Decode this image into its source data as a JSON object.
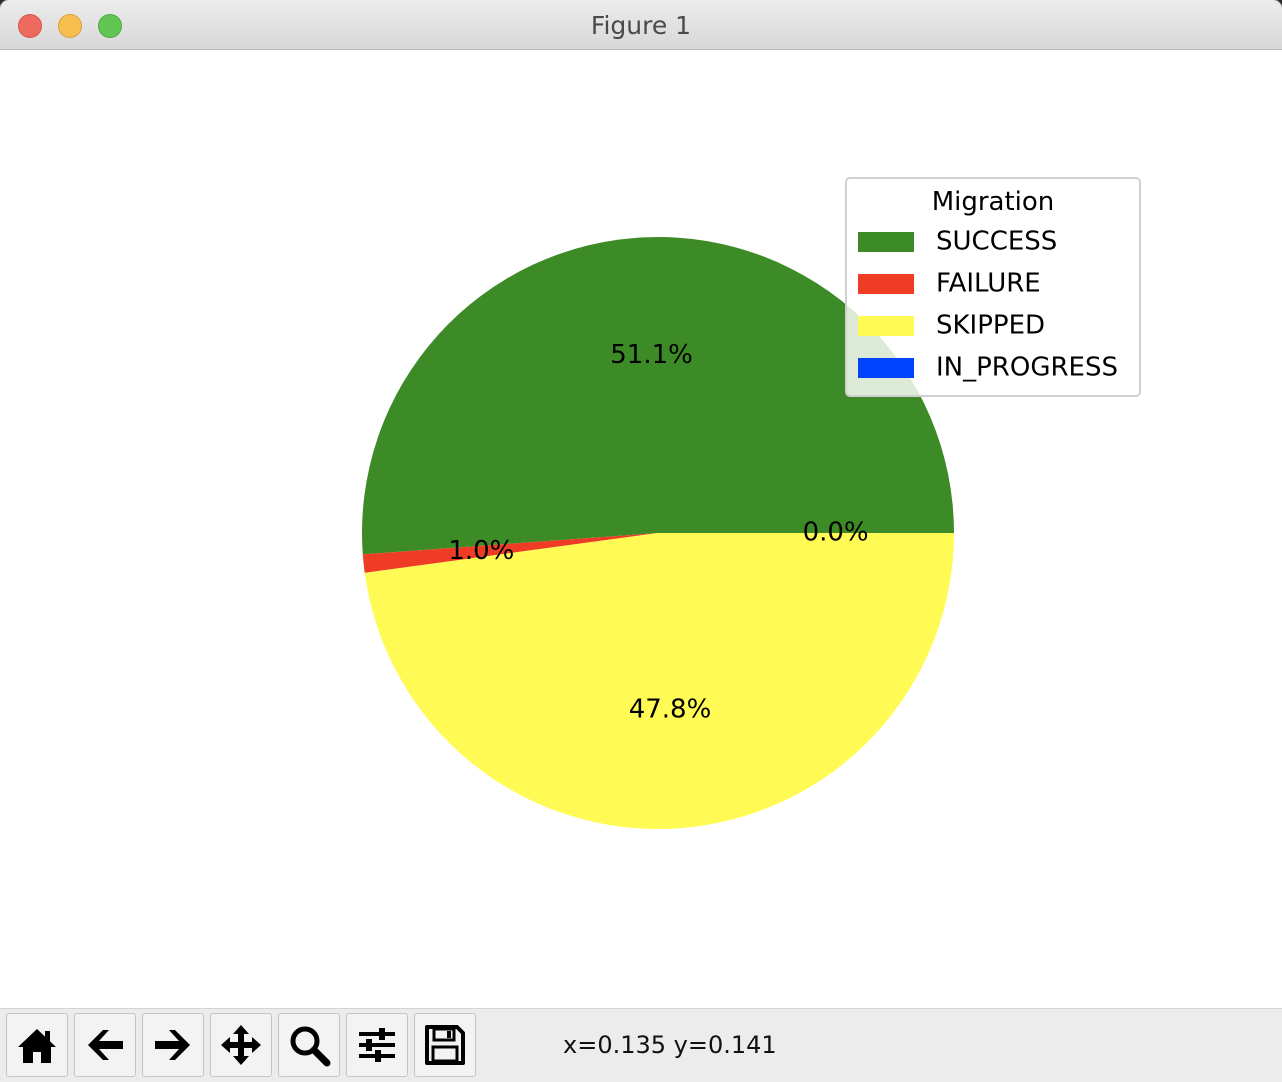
{
  "window": {
    "title": "Figure 1"
  },
  "toolbar": {
    "buttons": [
      {
        "name": "home-button",
        "icon": "home-icon"
      },
      {
        "name": "back-button",
        "icon": "arrow-left-icon"
      },
      {
        "name": "forward-button",
        "icon": "arrow-right-icon"
      },
      {
        "name": "pan-button",
        "icon": "move-icon"
      },
      {
        "name": "zoom-button",
        "icon": "magnifier-icon"
      },
      {
        "name": "configure-subplots-button",
        "icon": "sliders-icon"
      },
      {
        "name": "save-button",
        "icon": "floppy-disk-icon"
      }
    ],
    "coordinates": "x=0.135 y=0.141"
  },
  "chart_data": {
    "type": "pie",
    "title": "",
    "labels": [
      "SUCCESS",
      "FAILURE",
      "SKIPPED",
      "IN_PROGRESS"
    ],
    "values": [
      51.1,
      1.0,
      47.8,
      0.0
    ],
    "autopct_labels": [
      "51.1%",
      "1.0%",
      "47.8%",
      "0.0%"
    ],
    "colors": [
      "#3c8b26",
      "#ee3d24",
      "#fffb54",
      "#0044ff"
    ],
    "start_angle_deg": 0,
    "direction": "counterclockwise",
    "legend": {
      "title": "Migration",
      "placement": "top-right",
      "entries": [
        "SUCCESS",
        "FAILURE",
        "SKIPPED",
        "IN_PROGRESS"
      ]
    }
  }
}
